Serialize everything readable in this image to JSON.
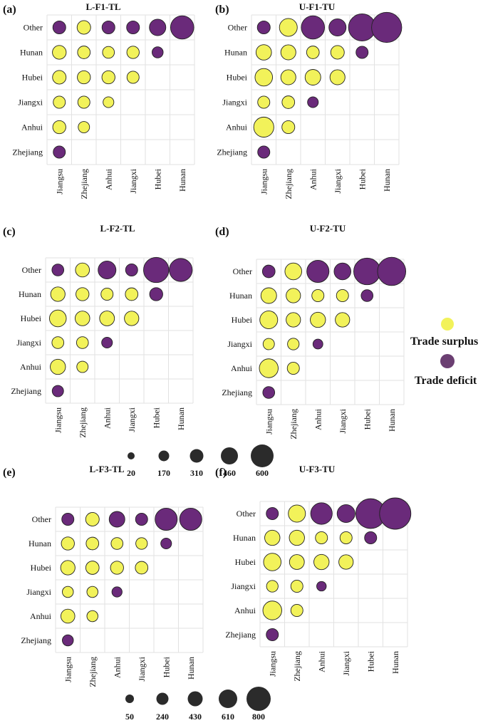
{
  "colors": {
    "surplus": "#f2f25a",
    "deficit": "#6a2a7a",
    "legend_deficit": "#6b3f72",
    "size_key": "#2b2b2b",
    "grid": "#e2e2e2"
  },
  "legend": {
    "surplus_label": "Trade surplus",
    "deficit_label": "Trade deficit"
  },
  "size_keys": [
    {
      "labels": [
        "20",
        "170",
        "310",
        "460",
        "600"
      ]
    },
    {
      "labels": [
        "50",
        "240",
        "430",
        "610",
        "800"
      ]
    }
  ],
  "chart_data": [
    {
      "type": "bubble-matrix",
      "panel_label": "(a)",
      "title": "L-F1-TL",
      "rows": [
        "Other",
        "Hunan",
        "Hubei",
        "Jiangxi",
        "Anhui",
        "Zhejiang"
      ],
      "columns": [
        "Jiangsu",
        "Zhejiang",
        "Anhui",
        "Jiangxi",
        "Hubei",
        "Hunan"
      ],
      "cells": [
        [
          {
            "v": 135,
            "s": "deficit"
          },
          {
            "v": 150,
            "s": "surplus"
          },
          {
            "v": 135,
            "s": "deficit"
          },
          {
            "v": 135,
            "s": "deficit"
          },
          {
            "v": 220,
            "s": "deficit"
          },
          {
            "v": 440,
            "s": "deficit"
          }
        ],
        [
          {
            "v": 155,
            "s": "surplus"
          },
          {
            "v": 130,
            "s": "surplus"
          },
          {
            "v": 115,
            "s": "surplus"
          },
          {
            "v": 125,
            "s": "surplus"
          },
          {
            "v": 100,
            "s": "deficit"
          },
          null
        ],
        [
          {
            "v": 150,
            "s": "surplus"
          },
          {
            "v": 140,
            "s": "surplus"
          },
          {
            "v": 140,
            "s": "surplus"
          },
          {
            "v": 120,
            "s": "surplus"
          },
          null,
          null
        ],
        [
          {
            "v": 120,
            "s": "surplus"
          },
          {
            "v": 120,
            "s": "surplus"
          },
          {
            "v": 95,
            "s": "surplus"
          },
          null,
          null,
          null
        ],
        [
          {
            "v": 140,
            "s": "surplus"
          },
          {
            "v": 105,
            "s": "surplus"
          },
          null,
          null,
          null,
          null
        ],
        [
          {
            "v": 120,
            "s": "deficit"
          },
          null,
          null,
          null,
          null,
          null
        ]
      ]
    },
    {
      "type": "bubble-matrix",
      "panel_label": "(b)",
      "title": "U-F1-TU",
      "rows": [
        "Other",
        "Hunan",
        "Hubei",
        "Jiangxi",
        "Anhui",
        "Zhejiang"
      ],
      "columns": [
        "Jiangsu",
        "Zhejiang",
        "Anhui",
        "Jiangxi",
        "Hubei",
        "Hunan"
      ],
      "cells": [
        [
          {
            "v": 135,
            "s": "deficit"
          },
          {
            "v": 260,
            "s": "surplus"
          },
          {
            "v": 440,
            "s": "deficit"
          },
          {
            "v": 240,
            "s": "deficit"
          },
          {
            "v": 600,
            "s": "deficit"
          },
          {
            "v": 740,
            "s": "deficit"
          }
        ],
        [
          {
            "v": 195,
            "s": "surplus"
          },
          {
            "v": 185,
            "s": "surplus"
          },
          {
            "v": 130,
            "s": "surplus"
          },
          {
            "v": 150,
            "s": "surplus"
          },
          {
            "v": 120,
            "s": "deficit"
          },
          null
        ],
        [
          {
            "v": 250,
            "s": "surplus"
          },
          {
            "v": 185,
            "s": "surplus"
          },
          {
            "v": 200,
            "s": "surplus"
          },
          {
            "v": 185,
            "s": "surplus"
          },
          null,
          null
        ],
        [
          {
            "v": 120,
            "s": "surplus"
          },
          {
            "v": 130,
            "s": "surplus"
          },
          {
            "v": 95,
            "s": "deficit"
          },
          null,
          null,
          null
        ],
        [
          {
            "v": 330,
            "s": "surplus"
          },
          {
            "v": 135,
            "s": "surplus"
          },
          null,
          null,
          null,
          null
        ],
        [
          {
            "v": 120,
            "s": "deficit"
          },
          null,
          null,
          null,
          null,
          null
        ]
      ]
    },
    {
      "type": "bubble-matrix",
      "panel_label": "(c)",
      "title": "L-F2-TL",
      "rows": [
        "Other",
        "Hunan",
        "Hubei",
        "Jiangxi",
        "Anhui",
        "Zhejiang"
      ],
      "columns": [
        "Jiangsu",
        "Zhejiang",
        "Anhui",
        "Jiangxi",
        "Hubei",
        "Hunan"
      ],
      "cells": [
        [
          {
            "v": 115,
            "s": "deficit"
          },
          {
            "v": 160,
            "s": "surplus"
          },
          {
            "v": 260,
            "s": "deficit"
          },
          {
            "v": 120,
            "s": "deficit"
          },
          {
            "v": 520,
            "s": "deficit"
          },
          {
            "v": 430,
            "s": "deficit"
          }
        ],
        [
          {
            "v": 170,
            "s": "surplus"
          },
          {
            "v": 140,
            "s": "surplus"
          },
          {
            "v": 120,
            "s": "surplus"
          },
          {
            "v": 130,
            "s": "surplus"
          },
          {
            "v": 140,
            "s": "deficit"
          },
          null
        ],
        [
          {
            "v": 230,
            "s": "surplus"
          },
          {
            "v": 175,
            "s": "surplus"
          },
          {
            "v": 180,
            "s": "surplus"
          },
          {
            "v": 170,
            "s": "surplus"
          },
          null,
          null
        ],
        [
          {
            "v": 115,
            "s": "surplus"
          },
          {
            "v": 115,
            "s": "surplus"
          },
          {
            "v": 95,
            "s": "deficit"
          },
          null,
          null,
          null
        ],
        [
          {
            "v": 190,
            "s": "surplus"
          },
          {
            "v": 105,
            "s": "surplus"
          },
          null,
          null,
          null,
          null
        ],
        [
          {
            "v": 105,
            "s": "deficit"
          },
          null,
          null,
          null,
          null,
          null
        ]
      ]
    },
    {
      "type": "bubble-matrix",
      "panel_label": "(d)",
      "title": "U-F2-TU",
      "rows": [
        "Other",
        "Hunan",
        "Hubei",
        "Jiangxi",
        "Anhui",
        "Zhejiang"
      ],
      "columns": [
        "Jiangsu",
        "Zhejiang",
        "Anhui",
        "Jiangxi",
        "Hubei",
        "Hunan"
      ],
      "cells": [
        [
          {
            "v": 130,
            "s": "deficit"
          },
          {
            "v": 230,
            "s": "surplus"
          },
          {
            "v": 400,
            "s": "deficit"
          },
          {
            "v": 230,
            "s": "deficit"
          },
          {
            "v": 580,
            "s": "deficit"
          },
          {
            "v": 650,
            "s": "deficit"
          }
        ],
        [
          {
            "v": 200,
            "s": "surplus"
          },
          {
            "v": 170,
            "s": "surplus"
          },
          {
            "v": 120,
            "s": "surplus"
          },
          {
            "v": 120,
            "s": "surplus"
          },
          {
            "v": 115,
            "s": "deficit"
          },
          null
        ],
        [
          {
            "v": 260,
            "s": "surplus"
          },
          {
            "v": 170,
            "s": "surplus"
          },
          {
            "v": 190,
            "s": "surplus"
          },
          {
            "v": 170,
            "s": "surplus"
          },
          null,
          null
        ],
        [
          {
            "v": 105,
            "s": "surplus"
          },
          {
            "v": 110,
            "s": "surplus"
          },
          {
            "v": 80,
            "s": "deficit"
          },
          null,
          null,
          null
        ],
        [
          {
            "v": 290,
            "s": "surplus"
          },
          {
            "v": 120,
            "s": "surplus"
          },
          null,
          null,
          null,
          null
        ],
        [
          {
            "v": 115,
            "s": "deficit"
          },
          null,
          null,
          null,
          null,
          null
        ]
      ]
    },
    {
      "type": "bubble-matrix",
      "panel_label": "(e)",
      "title": "L-F3-TL",
      "rows": [
        "Other",
        "Hunan",
        "Hubei",
        "Jiangxi",
        "Anhui",
        "Zhejiang"
      ],
      "columns": [
        "Jiangsu",
        "Zhejiang",
        "Anhui",
        "Jiangxi",
        "Hubei",
        "Hunan"
      ],
      "cells": [
        [
          {
            "v": 120,
            "s": "deficit"
          },
          {
            "v": 150,
            "s": "surplus"
          },
          {
            "v": 200,
            "s": "deficit"
          },
          {
            "v": 120,
            "s": "deficit"
          },
          {
            "v": 400,
            "s": "deficit"
          },
          {
            "v": 400,
            "s": "deficit"
          }
        ],
        [
          {
            "v": 140,
            "s": "surplus"
          },
          {
            "v": 130,
            "s": "surplus"
          },
          {
            "v": 115,
            "s": "surplus"
          },
          {
            "v": 110,
            "s": "surplus"
          },
          {
            "v": 95,
            "s": "deficit"
          },
          null
        ],
        [
          {
            "v": 170,
            "s": "surplus"
          },
          {
            "v": 145,
            "s": "surplus"
          },
          {
            "v": 140,
            "s": "surplus"
          },
          {
            "v": 130,
            "s": "surplus"
          },
          null,
          null
        ],
        [
          {
            "v": 100,
            "s": "surplus"
          },
          {
            "v": 100,
            "s": "surplus"
          },
          {
            "v": 85,
            "s": "deficit"
          },
          null,
          null,
          null
        ],
        [
          {
            "v": 160,
            "s": "surplus"
          },
          {
            "v": 100,
            "s": "surplus"
          },
          null,
          null,
          null,
          null
        ],
        [
          {
            "v": 100,
            "s": "deficit"
          },
          null,
          null,
          null,
          null,
          null
        ]
      ]
    },
    {
      "type": "bubble-matrix",
      "panel_label": "(f)",
      "title": "U-F3-TU",
      "rows": [
        "Other",
        "Hunan",
        "Hubei",
        "Jiangxi",
        "Anhui",
        "Zhejiang"
      ],
      "columns": [
        "Jiangsu",
        "Zhejiang",
        "Anhui",
        "Jiangxi",
        "Hubei",
        "Hunan"
      ],
      "cells": [
        [
          {
            "v": 120,
            "s": "deficit"
          },
          {
            "v": 240,
            "s": "surplus"
          },
          {
            "v": 380,
            "s": "deficit"
          },
          {
            "v": 260,
            "s": "deficit"
          },
          {
            "v": 720,
            "s": "deficit"
          },
          {
            "v": 800,
            "s": "deficit"
          }
        ],
        [
          {
            "v": 190,
            "s": "surplus"
          },
          {
            "v": 190,
            "s": "surplus"
          },
          {
            "v": 120,
            "s": "surplus"
          },
          {
            "v": 120,
            "s": "surplus"
          },
          {
            "v": 120,
            "s": "deficit"
          },
          null
        ],
        [
          {
            "v": 250,
            "s": "surplus"
          },
          {
            "v": 180,
            "s": "surplus"
          },
          {
            "v": 190,
            "s": "surplus"
          },
          {
            "v": 170,
            "s": "surplus"
          },
          null,
          null
        ],
        [
          {
            "v": 110,
            "s": "surplus"
          },
          {
            "v": 120,
            "s": "surplus"
          },
          {
            "v": 75,
            "s": "deficit"
          },
          null,
          null,
          null
        ],
        [
          {
            "v": 290,
            "s": "surplus"
          },
          {
            "v": 120,
            "s": "surplus"
          },
          null,
          null,
          null,
          null
        ],
        [
          {
            "v": 120,
            "s": "deficit"
          },
          null,
          null,
          null,
          null,
          null
        ]
      ]
    }
  ]
}
